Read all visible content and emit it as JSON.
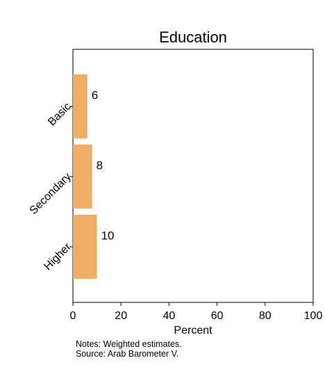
{
  "chart_data": {
    "type": "bar",
    "orientation": "horizontal",
    "title": "Education",
    "xlabel": "Percent",
    "ylabel": "",
    "categories": [
      "Basic",
      "Secondary",
      "Higher"
    ],
    "values": [
      6,
      8,
      10
    ],
    "data_labels": [
      "6",
      "8",
      "10"
    ],
    "xlim": [
      0,
      100
    ],
    "xticks": [
      "0",
      "20",
      "40",
      "60",
      "80",
      "100"
    ],
    "grid": false,
    "legend": "none",
    "bar_color": "#f0ad63"
  },
  "notes": {
    "line1": "Notes: Weighted estimates.",
    "line2": "Source: Arab Barometer V."
  }
}
